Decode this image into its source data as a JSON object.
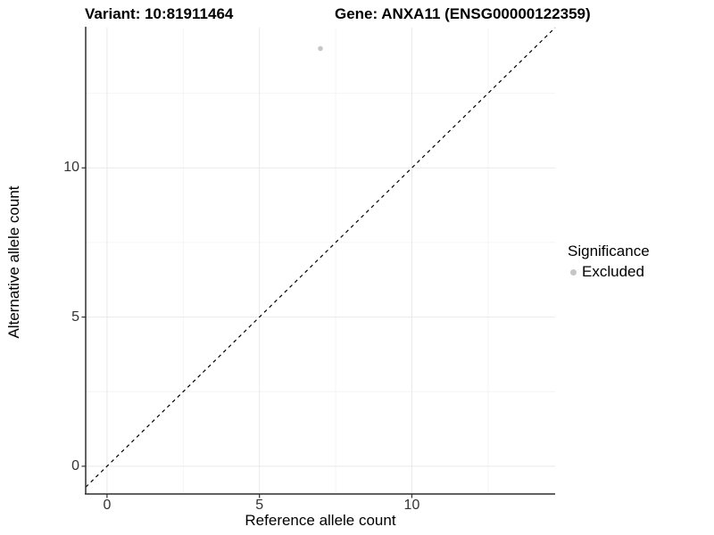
{
  "title": {
    "variant": "Variant: 10:81911464",
    "gene": "Gene: ANXA11 (ENSG00000122359)"
  },
  "legend": {
    "title": "Significance",
    "items": [
      {
        "label": "Excluded",
        "color": "#c6c6c6"
      }
    ]
  },
  "chart_data": {
    "type": "scatter",
    "title": "Variant: 10:81911464   Gene: ANXA11 (ENSG00000122359)",
    "xlabel": "Reference allele count",
    "ylabel": "Alternative allele count",
    "xlim": [
      -0.7,
      14.7
    ],
    "ylim": [
      -0.93,
      14.7
    ],
    "x_major_ticks": [
      0,
      5,
      10
    ],
    "x_minor_ticks": [
      2.5,
      7.5,
      12.5
    ],
    "y_major_ticks": [
      0,
      5,
      10
    ],
    "y_minor_ticks": [
      2.5,
      7.5,
      12.5
    ],
    "grid": true,
    "legend_position": "right",
    "series": [
      {
        "name": "Excluded",
        "points": [
          {
            "x": 7,
            "y": 14
          }
        ]
      }
    ],
    "reference_line": {
      "slope": 1,
      "intercept": 0,
      "style": "dashed",
      "color": "#000000"
    },
    "colors": {
      "point": "#c6c6c6",
      "grid_major": "#e9e9e9",
      "grid_minor": "#f4f4f4",
      "axis": "#2f2f2f",
      "tick_text": "#333333"
    }
  }
}
